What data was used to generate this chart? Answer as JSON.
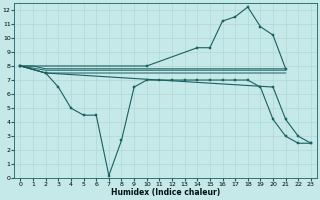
{
  "xlabel": "Humidex (Indice chaleur)",
  "bg_color": "#c5e8e8",
  "grid_color": "#b0d8d8",
  "line_color": "#1a6060",
  "xlim": [
    -0.5,
    23.5
  ],
  "ylim": [
    0,
    12.5
  ],
  "xticks": [
    0,
    1,
    2,
    3,
    4,
    5,
    6,
    7,
    8,
    9,
    10,
    11,
    12,
    13,
    14,
    15,
    16,
    17,
    18,
    19,
    20,
    21,
    22,
    23
  ],
  "yticks": [
    0,
    1,
    2,
    3,
    4,
    5,
    6,
    7,
    8,
    9,
    10,
    11,
    12
  ],
  "curve_x": [
    0,
    10,
    14,
    15,
    16,
    17,
    18,
    19,
    20,
    21
  ],
  "curve_y": [
    8,
    8,
    9.3,
    9.3,
    11.2,
    11.5,
    12.2,
    10.8,
    10.2,
    7.8
  ],
  "line1_x": [
    0,
    1,
    2,
    21
  ],
  "line1_y": [
    8,
    8,
    7.8,
    7.8
  ],
  "line2_x": [
    0,
    2,
    10,
    21
  ],
  "line2_y": [
    8,
    7.7,
    7.7,
    7.7
  ],
  "line3_x": [
    0,
    2,
    10,
    20,
    21
  ],
  "line3_y": [
    8,
    7.5,
    7.5,
    7.5,
    7.5
  ],
  "zigzag_x": [
    0,
    2,
    3,
    4,
    5,
    6,
    7,
    8,
    9,
    10,
    11,
    12,
    13,
    14,
    15,
    16,
    17,
    18,
    19,
    20,
    21,
    22,
    23
  ],
  "zigzag_y": [
    8,
    7.5,
    6.5,
    5.0,
    4.5,
    4.5,
    0.2,
    2.7,
    6.5,
    7.0,
    7.0,
    7.0,
    7.0,
    7.0,
    7.0,
    7.0,
    7.0,
    7.0,
    6.5,
    4.2,
    3.0,
    2.5,
    2.5
  ],
  "diag_x": [
    0,
    2,
    20,
    21,
    22,
    23
  ],
  "diag_y": [
    8,
    7.5,
    6.5,
    4.2,
    3.0,
    2.5
  ]
}
